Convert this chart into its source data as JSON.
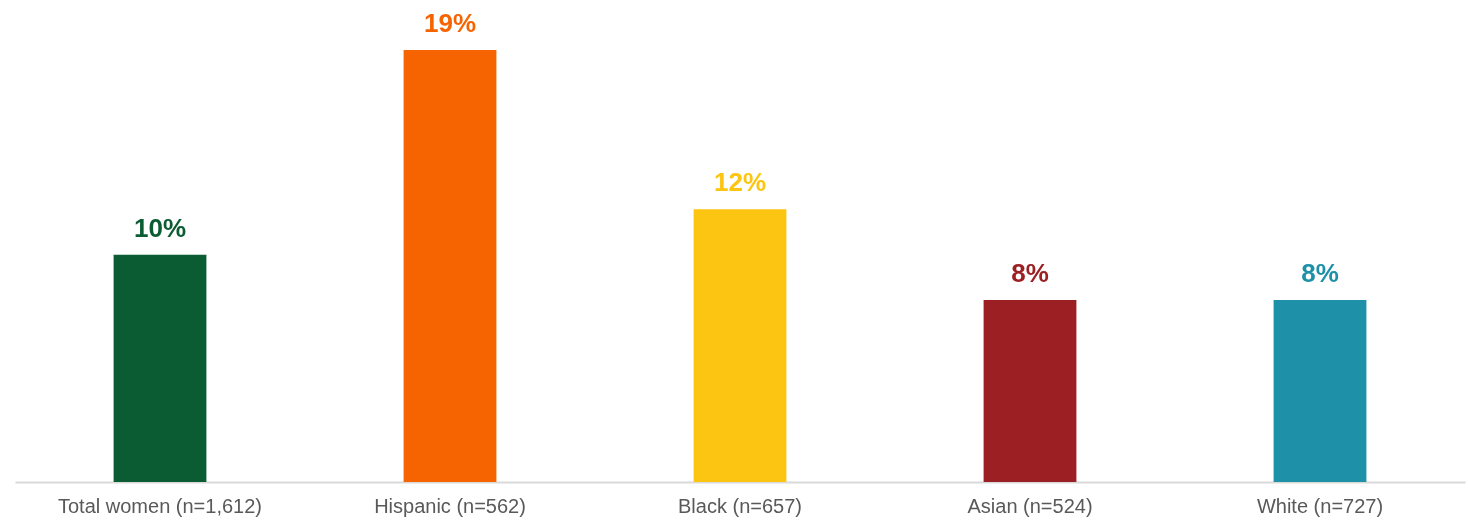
{
  "chart_data": {
    "type": "bar",
    "categories": [
      "Total women (n=1,612)",
      "Hispanic (n=562)",
      "Black (n=657)",
      "Asian (n=524)",
      "White (n=727)"
    ],
    "values": [
      10,
      19,
      12,
      8,
      8
    ],
    "value_labels": [
      "10%",
      "19%",
      "12%",
      "8%",
      "8%"
    ],
    "colors": [
      "#0b5c33",
      "#f56400",
      "#fcc512",
      "#9b1f23",
      "#1e91a8"
    ],
    "grid": false,
    "legend": false
  }
}
